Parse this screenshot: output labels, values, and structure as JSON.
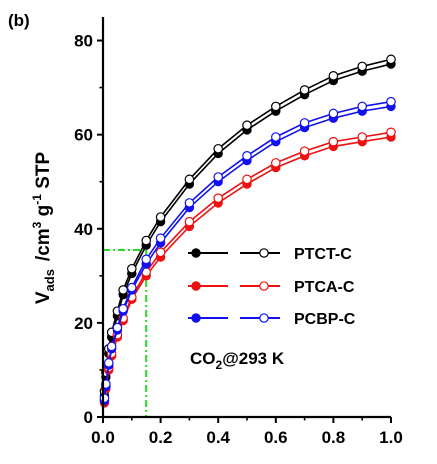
{
  "panel_label": "(b)",
  "chart_data": {
    "type": "line",
    "xlim": [
      0.0,
      1.0
    ],
    "ylim": [
      0,
      85
    ],
    "x_ticks": [
      "0.0",
      "0.2",
      "0.4",
      "0.6",
      "0.8",
      "1.0"
    ],
    "y_ticks": [
      "0",
      "20",
      "40",
      "60",
      "80"
    ],
    "ylabel": {
      "main": "V",
      "sub": "ads",
      "unit_a": "/cm",
      "sup3": "3",
      "unit_b": " g",
      "supm1": "-1",
      "unit_c": " STP"
    },
    "annotation": {
      "pre": "CO",
      "sub": "2",
      "post": "@293 K"
    },
    "reference_lines": {
      "x": 0.15,
      "y": 35.5,
      "color": "#22dd22"
    },
    "legend": {
      "position": "center-right"
    },
    "series": [
      {
        "name": "PTCT-C",
        "color": "#000000",
        "x": [
          0.005,
          0.01,
          0.02,
          0.03,
          0.05,
          0.07,
          0.1,
          0.15,
          0.2,
          0.3,
          0.4,
          0.5,
          0.6,
          0.7,
          0.8,
          0.9,
          1.0
        ],
        "adsorption": [
          4.5,
          8.5,
          13.5,
          17.0,
          21.5,
          26.0,
          30.5,
          36.5,
          41.5,
          49.5,
          56.0,
          61.0,
          65.0,
          68.5,
          71.5,
          73.5,
          75.0
        ],
        "desorption": [
          5.5,
          9.5,
          14.5,
          18.0,
          22.5,
          27.0,
          31.5,
          37.5,
          42.5,
          50.5,
          57.0,
          62.0,
          66.0,
          69.5,
          72.5,
          74.5,
          76.0
        ]
      },
      {
        "name": "PTCA-C",
        "color": "#ee1111",
        "x": [
          0.005,
          0.01,
          0.02,
          0.03,
          0.05,
          0.07,
          0.1,
          0.15,
          0.2,
          0.3,
          0.4,
          0.5,
          0.6,
          0.7,
          0.8,
          0.9,
          1.0
        ],
        "adsorption": [
          3.0,
          6.0,
          10.0,
          13.0,
          17.0,
          20.5,
          25.0,
          30.0,
          34.0,
          40.5,
          45.5,
          49.5,
          53.0,
          55.5,
          57.5,
          58.5,
          59.5
        ],
        "desorption": [
          3.5,
          6.5,
          10.5,
          13.5,
          17.5,
          21.0,
          25.5,
          30.8,
          35.0,
          41.5,
          46.5,
          50.5,
          54.0,
          56.5,
          58.5,
          59.5,
          60.5
        ]
      },
      {
        "name": "PCBP-C",
        "color": "#1111ee",
        "x": [
          0.005,
          0.01,
          0.02,
          0.03,
          0.05,
          0.07,
          0.1,
          0.15,
          0.2,
          0.3,
          0.4,
          0.5,
          0.6,
          0.7,
          0.8,
          0.9,
          1.0
        ],
        "adsorption": [
          3.5,
          6.5,
          11.0,
          14.5,
          18.5,
          22.5,
          27.0,
          32.5,
          37.0,
          44.5,
          50.0,
          54.5,
          58.5,
          61.5,
          63.5,
          65.0,
          66.0
        ],
        "desorption": [
          4.0,
          7.0,
          11.5,
          15.0,
          19.0,
          23.0,
          27.5,
          33.5,
          38.0,
          45.5,
          51.0,
          55.5,
          59.5,
          62.5,
          64.5,
          66.0,
          67.0
        ]
      }
    ]
  }
}
